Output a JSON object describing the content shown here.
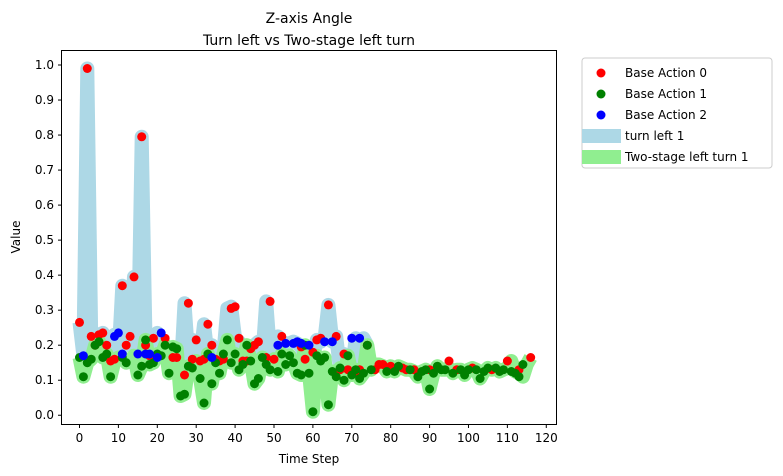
{
  "chart_data": {
    "type": "scatter",
    "title": "Z-axis Angle",
    "subtitle": "Turn left vs Two-stage left turn",
    "xlabel": "Time Step",
    "ylabel": "Value",
    "xlim": [
      -4.5,
      122.5
    ],
    "ylim": [
      -0.025,
      1.04
    ],
    "xticks": [
      0,
      10,
      20,
      30,
      40,
      50,
      60,
      70,
      80,
      90,
      100,
      110,
      120
    ],
    "yticks": [
      0.0,
      0.1,
      0.2,
      0.3,
      0.4,
      0.5,
      0.6,
      0.7,
      0.8,
      0.9,
      1.0
    ],
    "xtick_labels": [
      "0",
      "10",
      "20",
      "30",
      "40",
      "50",
      "60",
      "70",
      "80",
      "90",
      "100",
      "110",
      "120"
    ],
    "ytick_labels": [
      "0.0",
      "0.1",
      "0.2",
      "0.3",
      "0.4",
      "0.5",
      "0.6",
      "0.7",
      "0.8",
      "0.9",
      "1.0"
    ],
    "grid": false,
    "legend_position": "outside-right",
    "legend": [
      {
        "label": "Base Action 0",
        "kind": "point",
        "color": "#ff0000"
      },
      {
        "label": "Base Action 1",
        "kind": "point",
        "color": "#008000"
      },
      {
        "label": "Base Action 2",
        "kind": "point",
        "color": "#0000ff"
      },
      {
        "label": "turn left 1",
        "kind": "band",
        "color": "#add8e6"
      },
      {
        "label": "Two-stage left turn 1",
        "kind": "band",
        "color": "#90ee90"
      }
    ],
    "bands": [
      {
        "name": "turn left 1",
        "color": "#add8e6",
        "x": [
          0,
          1,
          2,
          3,
          4,
          5,
          6,
          7,
          8,
          9,
          10,
          11,
          12,
          13,
          14,
          15,
          16,
          17,
          18,
          19,
          20,
          21,
          22,
          23,
          24,
          25,
          26,
          27,
          28,
          29,
          30,
          31,
          32,
          33,
          34,
          35,
          36,
          37,
          38,
          39,
          40,
          41,
          42,
          43,
          44,
          45,
          46,
          47,
          48,
          49,
          50,
          51,
          52,
          53,
          54,
          55,
          56,
          57,
          58,
          59,
          60,
          61,
          62,
          63,
          64,
          65,
          66,
          67,
          68,
          69,
          70,
          71,
          72,
          73,
          74
        ],
        "y": [
          0.265,
          0.17,
          0.99,
          0.225,
          0.2,
          0.23,
          0.235,
          0.2,
          0.22,
          0.23,
          0.16,
          0.37,
          0.2,
          0.22,
          0.395,
          0.17,
          0.795,
          0.2,
          0.17,
          0.22,
          0.235,
          0.21,
          0.19,
          0.165,
          0.165,
          0.16,
          0.115,
          0.32,
          0.16,
          0.215,
          0.155,
          0.16,
          0.26,
          0.165,
          0.2,
          0.16,
          0.155,
          0.175,
          0.305,
          0.31,
          0.22,
          0.21,
          0.175,
          0.155,
          0.19,
          0.2,
          0.21,
          0.165,
          0.325,
          0.175,
          0.16,
          0.225,
          0.2,
          0.205,
          0.205,
          0.21,
          0.205,
          0.195,
          0.16,
          0.18,
          0.16,
          0.215,
          0.21,
          0.22,
          0.315,
          0.21,
          0.225,
          0.13,
          0.175,
          0.13,
          0.125,
          0.22,
          0.13,
          0.22,
          0.2
        ]
      },
      {
        "name": "Two-stage left turn 1",
        "color": "#90ee90",
        "x": [
          0,
          1,
          2,
          3,
          4,
          5,
          6,
          7,
          8,
          9,
          10,
          11,
          12,
          13,
          14,
          15,
          16,
          17,
          18,
          19,
          20,
          21,
          22,
          23,
          24,
          25,
          26,
          27,
          28,
          29,
          30,
          31,
          32,
          33,
          34,
          35,
          36,
          37,
          38,
          39,
          40,
          41,
          42,
          43,
          44,
          45,
          46,
          47,
          48,
          49,
          50,
          51,
          52,
          53,
          54,
          55,
          56,
          57,
          58,
          59,
          60,
          61,
          62,
          63,
          64,
          65,
          66,
          67,
          68,
          69,
          70,
          71,
          72,
          73,
          74,
          75,
          76,
          77,
          78,
          79,
          80,
          81,
          82,
          83,
          84,
          85,
          86,
          87,
          88,
          89,
          90,
          91,
          92,
          93,
          94,
          95,
          96,
          97,
          98,
          99,
          100,
          101,
          102,
          103,
          104,
          105,
          106,
          107,
          108,
          109,
          110,
          111,
          112,
          113,
          114,
          115,
          116
        ],
        "y": [
          0.165,
          0.11,
          0.15,
          0.16,
          0.2,
          0.21,
          0.165,
          0.175,
          0.11,
          0.155,
          0.165,
          0.165,
          0.15,
          0.155,
          0.17,
          0.115,
          0.14,
          0.215,
          0.145,
          0.15,
          0.175,
          0.17,
          0.2,
          0.12,
          0.195,
          0.19,
          0.055,
          0.06,
          0.14,
          0.135,
          0.155,
          0.105,
          0.035,
          0.175,
          0.09,
          0.15,
          0.12,
          0.175,
          0.215,
          0.15,
          0.175,
          0.13,
          0.145,
          0.2,
          0.155,
          0.09,
          0.105,
          0.165,
          0.145,
          0.13,
          0.16,
          0.125,
          0.175,
          0.145,
          0.17,
          0.15,
          0.12,
          0.115,
          0.2,
          0.12,
          0.01,
          0.17,
          0.155,
          0.165,
          0.03,
          0.125,
          0.11,
          0.135,
          0.1,
          0.17,
          0.115,
          0.13,
          0.105,
          0.12,
          0.2,
          0.13,
          0.145,
          0.145,
          0.14,
          0.125,
          0.14,
          0.125,
          0.14,
          0.135,
          0.13,
          0.13,
          0.125,
          0.11,
          0.125,
          0.13,
          0.075,
          0.12,
          0.14,
          0.13,
          0.13,
          0.135,
          0.12,
          0.13,
          0.13,
          0.115,
          0.13,
          0.135,
          0.13,
          0.105,
          0.125,
          0.135,
          0.13,
          0.135,
          0.125,
          0.13,
          0.135,
          0.155,
          0.125,
          0.12,
          0.11,
          0.145,
          0.165
        ]
      }
    ],
    "series": [
      {
        "name": "Base Action 0",
        "color": "#ff0000",
        "points": [
          [
            0,
            0.265
          ],
          [
            2,
            0.99
          ],
          [
            3,
            0.225
          ],
          [
            4,
            0.2
          ],
          [
            5,
            0.23
          ],
          [
            6,
            0.235
          ],
          [
            7,
            0.2
          ],
          [
            8,
            0.155
          ],
          [
            9,
            0.16
          ],
          [
            11,
            0.37
          ],
          [
            12,
            0.2
          ],
          [
            13,
            0.225
          ],
          [
            14,
            0.395
          ],
          [
            16,
            0.795
          ],
          [
            17,
            0.2
          ],
          [
            18,
            0.17
          ],
          [
            19,
            0.22
          ],
          [
            22,
            0.22
          ],
          [
            24,
            0.165
          ],
          [
            25,
            0.165
          ],
          [
            27,
            0.115
          ],
          [
            28,
            0.32
          ],
          [
            29,
            0.16
          ],
          [
            30,
            0.215
          ],
          [
            31,
            0.155
          ],
          [
            32,
            0.16
          ],
          [
            33,
            0.26
          ],
          [
            34,
            0.2
          ],
          [
            35,
            0.16
          ],
          [
            36,
            0.155
          ],
          [
            37,
            0.16
          ],
          [
            39,
            0.305
          ],
          [
            40,
            0.31
          ],
          [
            41,
            0.22
          ],
          [
            42,
            0.155
          ],
          [
            43,
            0.155
          ],
          [
            44,
            0.19
          ],
          [
            45,
            0.2
          ],
          [
            46,
            0.21
          ],
          [
            48,
            0.165
          ],
          [
            49,
            0.325
          ],
          [
            50,
            0.16
          ],
          [
            52,
            0.225
          ],
          [
            57,
            0.195
          ],
          [
            58,
            0.16
          ],
          [
            60,
            0.18
          ],
          [
            61,
            0.215
          ],
          [
            62,
            0.22
          ],
          [
            64,
            0.315
          ],
          [
            66,
            0.225
          ],
          [
            67,
            0.13
          ],
          [
            68,
            0.175
          ],
          [
            69,
            0.13
          ],
          [
            71,
            0.125
          ],
          [
            72,
            0.13
          ],
          [
            74,
            0.2
          ],
          [
            76,
            0.13
          ],
          [
            77,
            0.145
          ],
          [
            78,
            0.145
          ],
          [
            80,
            0.14
          ],
          [
            83,
            0.135
          ],
          [
            84,
            0.13
          ],
          [
            86,
            0.13
          ],
          [
            90,
            0.13
          ],
          [
            95,
            0.155
          ],
          [
            97,
            0.13
          ],
          [
            101,
            0.135
          ],
          [
            106,
            0.13
          ],
          [
            110,
            0.155
          ],
          [
            113,
            0.13
          ],
          [
            116,
            0.165
          ]
        ]
      },
      {
        "name": "Base Action 1",
        "color": "#008000",
        "points": [
          [
            0,
            0.165
          ],
          [
            1,
            0.11
          ],
          [
            2,
            0.15
          ],
          [
            3,
            0.16
          ],
          [
            4,
            0.2
          ],
          [
            5,
            0.21
          ],
          [
            6,
            0.165
          ],
          [
            7,
            0.175
          ],
          [
            8,
            0.11
          ],
          [
            11,
            0.165
          ],
          [
            12,
            0.15
          ],
          [
            15,
            0.115
          ],
          [
            16,
            0.14
          ],
          [
            17,
            0.215
          ],
          [
            18,
            0.145
          ],
          [
            19,
            0.15
          ],
          [
            20,
            0.175
          ],
          [
            21,
            0.17
          ],
          [
            22,
            0.2
          ],
          [
            23,
            0.12
          ],
          [
            24,
            0.195
          ],
          [
            25,
            0.19
          ],
          [
            26,
            0.055
          ],
          [
            27,
            0.06
          ],
          [
            28,
            0.14
          ],
          [
            29,
            0.135
          ],
          [
            31,
            0.105
          ],
          [
            32,
            0.035
          ],
          [
            33,
            0.175
          ],
          [
            34,
            0.09
          ],
          [
            35,
            0.15
          ],
          [
            36,
            0.12
          ],
          [
            37,
            0.175
          ],
          [
            38,
            0.215
          ],
          [
            39,
            0.15
          ],
          [
            40,
            0.175
          ],
          [
            41,
            0.13
          ],
          [
            42,
            0.145
          ],
          [
            43,
            0.2
          ],
          [
            44,
            0.155
          ],
          [
            45,
            0.09
          ],
          [
            46,
            0.105
          ],
          [
            47,
            0.165
          ],
          [
            48,
            0.145
          ],
          [
            49,
            0.13
          ],
          [
            51,
            0.125
          ],
          [
            52,
            0.175
          ],
          [
            53,
            0.145
          ],
          [
            54,
            0.17
          ],
          [
            55,
            0.15
          ],
          [
            56,
            0.12
          ],
          [
            57,
            0.115
          ],
          [
            58,
            0.2
          ],
          [
            59,
            0.12
          ],
          [
            60,
            0.01
          ],
          [
            61,
            0.17
          ],
          [
            62,
            0.155
          ],
          [
            63,
            0.165
          ],
          [
            64,
            0.03
          ],
          [
            65,
            0.125
          ],
          [
            66,
            0.11
          ],
          [
            67,
            0.135
          ],
          [
            68,
            0.1
          ],
          [
            69,
            0.17
          ],
          [
            70,
            0.115
          ],
          [
            71,
            0.13
          ],
          [
            72,
            0.105
          ],
          [
            73,
            0.12
          ],
          [
            74,
            0.2
          ],
          [
            75,
            0.13
          ],
          [
            79,
            0.125
          ],
          [
            81,
            0.125
          ],
          [
            82,
            0.14
          ],
          [
            85,
            0.13
          ],
          [
            87,
            0.11
          ],
          [
            88,
            0.125
          ],
          [
            89,
            0.13
          ],
          [
            90,
            0.075
          ],
          [
            91,
            0.12
          ],
          [
            92,
            0.14
          ],
          [
            93,
            0.13
          ],
          [
            94,
            0.13
          ],
          [
            96,
            0.12
          ],
          [
            98,
            0.13
          ],
          [
            99,
            0.115
          ],
          [
            100,
            0.13
          ],
          [
            102,
            0.13
          ],
          [
            103,
            0.105
          ],
          [
            104,
            0.125
          ],
          [
            105,
            0.135
          ],
          [
            107,
            0.135
          ],
          [
            108,
            0.125
          ],
          [
            109,
            0.13
          ],
          [
            111,
            0.125
          ],
          [
            112,
            0.12
          ],
          [
            113,
            0.11
          ],
          [
            114,
            0.145
          ]
        ]
      },
      {
        "name": "Base Action 2",
        "color": "#0000ff",
        "points": [
          [
            1,
            0.17
          ],
          [
            9,
            0.225
          ],
          [
            10,
            0.235
          ],
          [
            11,
            0.175
          ],
          [
            15,
            0.175
          ],
          [
            17,
            0.175
          ],
          [
            18,
            0.175
          ],
          [
            20,
            0.165
          ],
          [
            21,
            0.235
          ],
          [
            34,
            0.165
          ],
          [
            51,
            0.2
          ],
          [
            53,
            0.205
          ],
          [
            55,
            0.205
          ],
          [
            56,
            0.21
          ],
          [
            57,
            0.205
          ],
          [
            59,
            0.2
          ],
          [
            63,
            0.21
          ],
          [
            65,
            0.21
          ],
          [
            70,
            0.22
          ],
          [
            72,
            0.22
          ]
        ]
      }
    ]
  }
}
